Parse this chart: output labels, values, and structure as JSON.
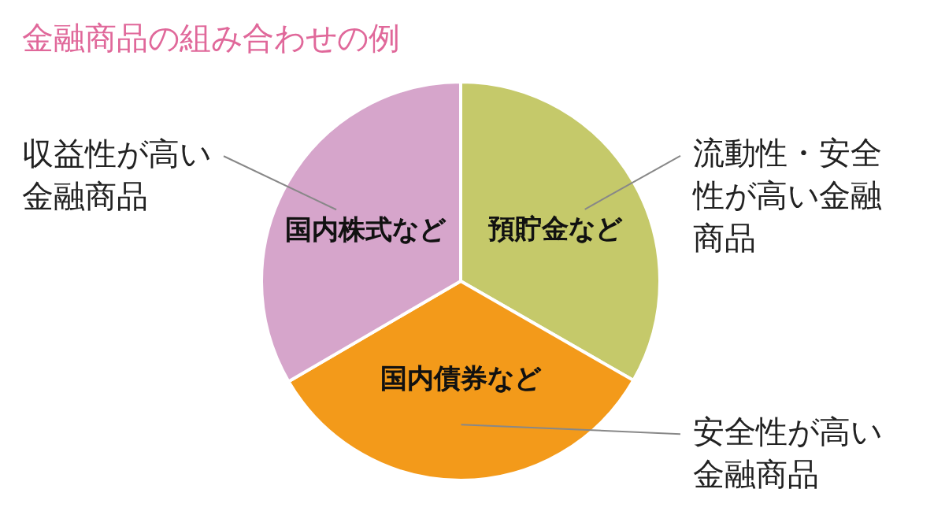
{
  "chart_data": {
    "type": "pie",
    "title": "金融商品の組み合わせの例",
    "categories": [
      "預貯金など",
      "国内債券など",
      "国内株式など"
    ],
    "values": [
      33.3,
      33.3,
      33.4
    ],
    "colors": [
      "#c5c96a",
      "#f39a1a",
      "#d6a5cb"
    ],
    "legend": false,
    "annotations": [
      {
        "text": "収益性が高い金融商品",
        "x": "国内株式など"
      },
      {
        "text": "流動性・安全性が高い金融商品",
        "x": "預貯金など"
      },
      {
        "text": "安全性が高い金融商品",
        "x": "国内債券など"
      }
    ]
  }
}
